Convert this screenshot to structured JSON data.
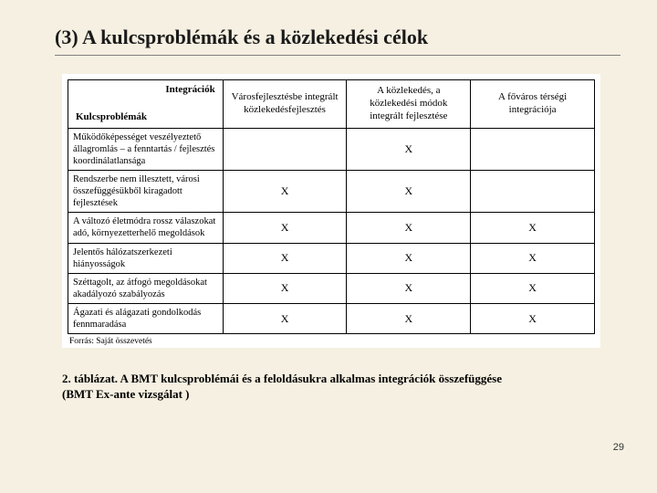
{
  "title": "(3) A kulcsproblémák és a közlekedési célok",
  "table": {
    "corner_top": "Integrációk",
    "corner_bot": "Kulcsproblémák",
    "col_headers": [
      "Városfejlesztésbe integrált közlekedésfejlesztés",
      "A közlekedés, a közlekedési módok integrált fejlesztése",
      "A főváros térségi integrációja"
    ],
    "rows": [
      {
        "label": "Működőképességet veszélyeztető állagromlás – a fenntartás / fejlesztés koordinálatlansága",
        "marks": [
          "",
          "X",
          ""
        ]
      },
      {
        "label": "Rendszerbe nem illesztett, városi összefüggésükből kiragadott fejlesztések",
        "marks": [
          "X",
          "X",
          ""
        ]
      },
      {
        "label": "A változó életmódra rossz válaszokat adó, környezetterhelő megoldások",
        "marks": [
          "X",
          "X",
          "X"
        ]
      },
      {
        "label": "Jelentős hálózatszerkezeti hiányosságok",
        "marks": [
          "X",
          "X",
          "X"
        ]
      },
      {
        "label": "Széttagolt, az átfogó megoldásokat akadályozó szabályozás",
        "marks": [
          "X",
          "X",
          "X"
        ]
      },
      {
        "label": "Ágazati és alágazati gondolkodás fennmaradása",
        "marks": [
          "X",
          "X",
          "X"
        ]
      }
    ],
    "source": "Forrás: Saját összevetés"
  },
  "caption_line1": "2. táblázat. A BMT kulcsproblémái és a feloldásukra alkalmas integrációk összefüggése",
  "caption_line2": "(BMT Ex-ante vizsgálat )",
  "page_number": "29"
}
